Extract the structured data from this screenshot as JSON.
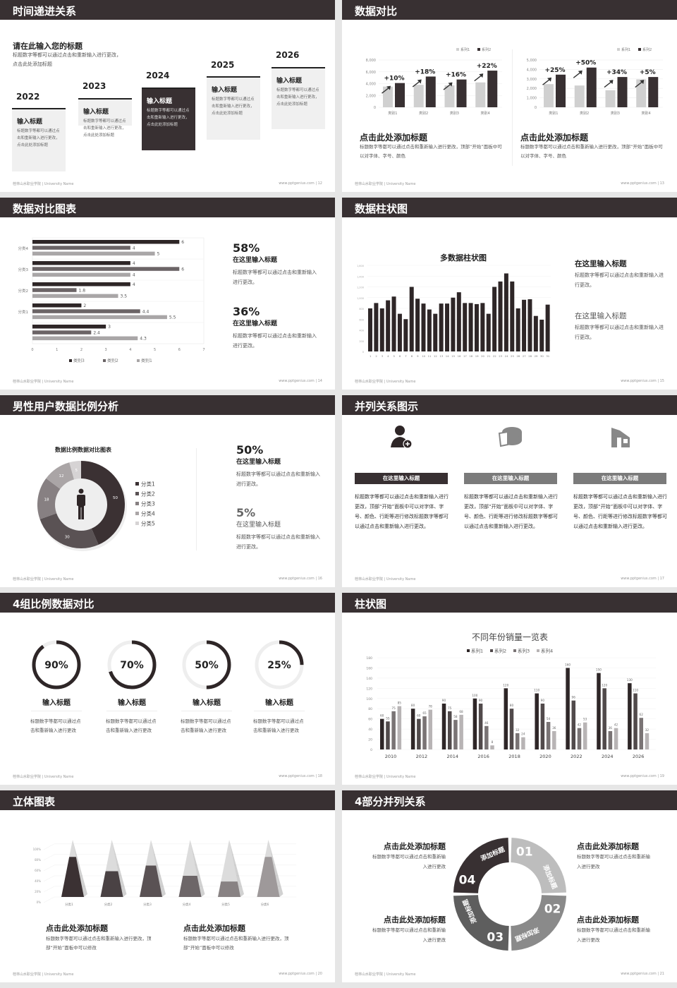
{
  "footer": {
    "school": "桂林山水职业学院 | University Name",
    "site": "www.pptgenius.com"
  },
  "colors": {
    "header": "#383032",
    "dark": "#383032",
    "mid": "#6b6466",
    "light": "#d0d0d0"
  },
  "slides": [
    {
      "title": "时间递进关系",
      "page": "12",
      "heading": "请在此输入您的标题",
      "desc": "标题数字等都可以通过点击和重新输入进行更改，点击此处添加标题",
      "cards": [
        {
          "year": "2022",
          "title": "输入标题",
          "text": "标题数字等都可以通过点击和重新输入进行更改，点击此处添加标题"
        },
        {
          "year": "2023",
          "title": "输入标题",
          "text": "标题数字等都可以通过点击和重新输入进行更改，点击此处添加标题"
        },
        {
          "year": "2024",
          "title": "输入标题",
          "text": "标题数字等都可以通过点击和重新输入进行更改，点击此处添加标题",
          "highlight": true
        },
        {
          "year": "2025",
          "title": "输入标题",
          "text": "标题数字等都可以通过点击和重新输入进行更改，点击此处添加标题"
        },
        {
          "year": "2026",
          "title": "输入标题",
          "text": "标题数字等都可以通过点击和重新输入进行更改，点击此处添加标题"
        }
      ]
    },
    {
      "title": "数据对比",
      "page": "13",
      "blocks": [
        {
          "heading": "点击此处添加标题",
          "text": "标题数字等都可以通过点击和重新输入进行更改，顶部“开始”面板中可以对字体、字号、颜色"
        },
        {
          "heading": "点击此处添加标题",
          "text": "标题数字等都可以通过点击和重新输入进行更改，顶部“开始”面板中可以对字体、字号、颜色"
        }
      ]
    },
    {
      "title": "数据对比图表",
      "page": "14",
      "stats": [
        {
          "value": "58%",
          "heading": "在这里输入标题",
          "text": "标题数字等都可以通过点击和重新输入进行更改。"
        },
        {
          "value": "36%",
          "heading": "在这里输入标题",
          "text": "标题数字等都可以通过点击和重新输入进行更改。"
        }
      ]
    },
    {
      "title": "数据柱状图",
      "page": "15",
      "stats": [
        {
          "heading": "在这里输入标题",
          "text": "标题数字等都可以通过点击和重新输入进行更改。"
        },
        {
          "heading": "在这里输入标题",
          "text": "标题数字等都可以通过点击和重新输入进行更改。"
        }
      ]
    },
    {
      "title": "男性用户数据比例分析",
      "page": "16",
      "icon": "male-person-icon",
      "stats": [
        {
          "value": "50%",
          "heading": "在这里输入标题",
          "text": "标题数字等都可以通过点击和重新输入进行更改。"
        },
        {
          "value": "5%",
          "heading": "在这里输入标题",
          "text": "标题数字等都可以通过点击和重新输入进行更改。"
        }
      ]
    },
    {
      "title": "并列关系图示",
      "page": "17",
      "columns": [
        {
          "icon": "user-add-icon",
          "label": "在这里输入标题",
          "color": "#383032",
          "text": "标题数字等都可以通过点击和重新输入进行更改，顶部“开始”面板中可以对字体、字号、颜色、行距等进行修改标题数字等都可以通过点击和重新输入进行更改。"
        },
        {
          "icon": "pie-chart-3d-icon",
          "label": "在这里输入标题",
          "color": "#7b7b7b",
          "text": "标题数字等都可以通过点击和重新输入进行更改，顶部“开始”面板中可以对字体、字号、颜色、行距等进行修改标题数字等都可以通过点击和重新输入进行更改。"
        },
        {
          "icon": "building-icon",
          "label": "在这里输入标题",
          "color": "#7b7b7b",
          "text": "标题数字等都可以通过点击和重新输入进行更改，顶部“开始”面板中可以对字体、字号、颜色、行距等进行修改标题数字等都可以通过点击和重新输入进行更改。"
        }
      ]
    },
    {
      "title": "4组比例数据对比",
      "page": "18",
      "rings": [
        {
          "value": "90%",
          "percent": 90,
          "heading": "输入标题",
          "text": "标题数字等都可以通过点击和重新输入进行更改"
        },
        {
          "value": "70%",
          "percent": 70,
          "heading": "输入标题",
          "text": "标题数字等都可以通过点击和重新输入进行更改"
        },
        {
          "value": "50%",
          "percent": 50,
          "heading": "输入标题",
          "text": "标题数字等都可以通过点击和重新输入进行更改"
        },
        {
          "value": "25%",
          "percent": 25,
          "heading": "输入标题",
          "text": "标题数字等都可以通过点击和重新输入进行更改"
        }
      ]
    },
    {
      "title": "柱状图",
      "page": "19"
    },
    {
      "title": "立体图表",
      "page": "20",
      "blocks": [
        {
          "heading": "点击此处添加标题",
          "text": "标题数字等都可以通过点击和重新输入进行更改，顶部“开始”面板中可以修改"
        },
        {
          "heading": "点击此处添加标题",
          "text": "标题数字等都可以通过点击和重新输入进行更改，顶部“开始”面板中可以修改"
        }
      ]
    },
    {
      "title": "4部分并列关系",
      "page": "21",
      "segments": [
        {
          "num": "01",
          "label": "添加标题",
          "color": "#bdbdbd"
        },
        {
          "num": "02",
          "label": "添加标题",
          "color": "#8a8a8a"
        },
        {
          "num": "03",
          "label": "添加标题",
          "color": "#5e5e5e"
        },
        {
          "num": "04",
          "label": "添加标题",
          "color": "#383032"
        }
      ],
      "blocks": [
        {
          "heading": "点击此处添加标题",
          "text": "标题数字等都可以通过点击和重新输入进行更改"
        },
        {
          "heading": "点击此处添加标题",
          "text": "标题数字等都可以通过点击和重新输入进行更改"
        },
        {
          "heading": "点击此处添加标题",
          "text": "标题数字等都可以通过点击和重新输入进行更改"
        },
        {
          "heading": "点击此处添加标题",
          "text": "标题数字等都可以通过点击和重新输入进行更改"
        }
      ]
    }
  ],
  "chart_data": [
    {
      "type": "bar",
      "slide": "13",
      "categories": [
        "类别1",
        "类别2",
        "类别3",
        "类别4"
      ],
      "ylim": [
        0,
        8000
      ],
      "yticks": [
        "0",
        "2,000",
        "4,000",
        "6,000",
        "8,000"
      ],
      "series": [
        {
          "name": "系列1",
          "values": [
            3500,
            3800,
            3700,
            4200
          ],
          "color": "#d0d0d0"
        },
        {
          "name": "系列2",
          "values": [
            4100,
            5200,
            4700,
            6200
          ],
          "color": "#383032"
        }
      ],
      "annotations": [
        "+10%",
        "+18%",
        "+16%",
        "+22%"
      ],
      "legend": "top-right"
    },
    {
      "type": "bar",
      "slide": "13",
      "categories": [
        "类别1",
        "类别2",
        "类别3",
        "类别4"
      ],
      "ylim": [
        0,
        5000
      ],
      "yticks": [
        "0",
        "1,000",
        "2,000",
        "3,000",
        "4,000",
        "5,000"
      ],
      "series": [
        {
          "name": "系列1",
          "values": [
            2450,
            2300,
            1800,
            2950
          ],
          "color": "#d0d0d0"
        },
        {
          "name": "系列2",
          "values": [
            3450,
            4200,
            3200,
            3200
          ],
          "color": "#383032"
        }
      ],
      "annotations": [
        "+25%",
        "+50%",
        "+34%",
        "+5%"
      ],
      "legend": "top-right"
    },
    {
      "type": "bar",
      "orientation": "horizontal",
      "slide": "14",
      "categories": [
        "分类4",
        "分类3",
        "分类2",
        "分类1",
        ""
      ],
      "xlim": [
        0,
        7
      ],
      "xticks": [
        "0",
        "1",
        "2",
        "3",
        "4",
        "5",
        "6",
        "7"
      ],
      "series": [
        {
          "name": "类别3",
          "values": [
            6,
            4,
            4,
            2,
            3
          ],
          "color": "#2e2627"
        },
        {
          "name": "类别2",
          "values": [
            4,
            6,
            1.8,
            4.4,
            2.4
          ],
          "color": "#6b6466"
        },
        {
          "name": "类别1",
          "values": [
            5,
            4,
            3.5,
            5.5,
            4.3
          ],
          "color": "#a9a6a7"
        }
      ],
      "legend": "bottom"
    },
    {
      "type": "bar",
      "slide": "15",
      "title": "多数据柱状图",
      "categories": [
        "1",
        "2",
        "3",
        "4",
        "5",
        "6",
        "7",
        "8",
        "9",
        "10",
        "11",
        "12",
        "13",
        "14",
        "15",
        "16",
        "17",
        "18",
        "19",
        "20",
        "21",
        "22",
        "23",
        "24",
        "25",
        "26",
        "27",
        "28",
        "29",
        "30",
        "31"
      ],
      "values": [
        800,
        900,
        800,
        950,
        1020,
        700,
        600,
        1200,
        980,
        890,
        780,
        700,
        890,
        890,
        1000,
        1100,
        900,
        900,
        880,
        900,
        700,
        1200,
        1300,
        1450,
        1300,
        800,
        960,
        970,
        660,
        590,
        870
      ],
      "ylim": [
        0,
        1600
      ],
      "yticks": [
        "0",
        "200",
        "400",
        "600",
        "800",
        "1,000",
        "1,200",
        "1,400",
        "1,600"
      ],
      "color": "#2e2627"
    },
    {
      "type": "pie",
      "slide": "16",
      "title": "数据比例数据对比图表",
      "donut": true,
      "labels": [
        "分类1",
        "分类2",
        "分类3",
        "分类4",
        "分类5"
      ],
      "values": [
        50,
        30,
        18,
        12,
        5
      ],
      "colors": [
        "#3b3133",
        "#5a5254",
        "#878082",
        "#aaa5a6",
        "#d6d3d4"
      ],
      "legend": "right"
    },
    {
      "type": "bar",
      "slide": "19",
      "title": "不同年份销量一览表",
      "categories": [
        "2010",
        "2012",
        "2014",
        "2016",
        "2018",
        "2020",
        "2022",
        "2024",
        "2026"
      ],
      "ylim": [
        0,
        180
      ],
      "yticks": [
        "0",
        "20",
        "40",
        "60",
        "80",
        "100",
        "120",
        "140",
        "160",
        "180"
      ],
      "series": [
        {
          "name": "系列1",
          "values": [
            60,
            80,
            90,
            100,
            120,
            110,
            160,
            150,
            130
          ],
          "color": "#2e2627"
        },
        {
          "name": "系列2",
          "values": [
            55,
            60,
            75,
            90,
            80,
            90,
            96,
            120,
            110
          ],
          "color": "#514a4b"
        },
        {
          "name": "系列3",
          "values": [
            75,
            65,
            58,
            46,
            32,
            54,
            42,
            36,
            62
          ],
          "color": "#7a7475"
        },
        {
          "name": "系列4",
          "values": [
            85,
            78,
            68,
            8,
            24,
            36,
            53,
            42,
            32
          ],
          "color": "#b8b4b5"
        }
      ],
      "legend": "top"
    },
    {
      "type": "bar",
      "style": "3d-pyramid",
      "slide": "20",
      "categories": [
        "分类1",
        "分类2",
        "分类3",
        "分类4",
        "分类5",
        "分类6"
      ],
      "values": [
        70,
        45,
        55,
        37,
        27,
        70
      ],
      "ylim": [
        0,
        100
      ],
      "yticks": [
        "0%",
        "20%",
        "40%",
        "60%",
        "80%",
        "100%"
      ],
      "colors": [
        "#3b3133",
        "#4a4244",
        "#5a5254",
        "#6d6668",
        "#888283",
        "#9e999a"
      ]
    }
  ]
}
